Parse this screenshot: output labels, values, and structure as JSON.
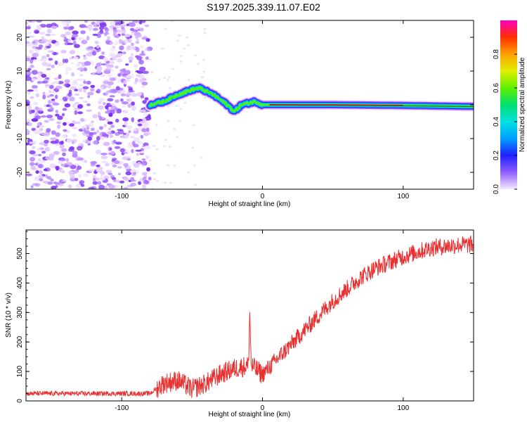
{
  "title": "S197.2025.339.11.07.E02",
  "chart_data": [
    {
      "type": "heatmap",
      "title": "S197.2025.339.11.07.E02",
      "xlabel": "Height of straight line (km)",
      "ylabel": "Frequency (Hz)",
      "xlim": [
        -168,
        150
      ],
      "ylim": [
        -25,
        25
      ],
      "xticks": [
        -100,
        0,
        100
      ],
      "yticks": [
        -20,
        -10,
        0,
        10,
        20
      ],
      "colorbar": {
        "label": "Normalized spectral amplitude",
        "range": [
          0,
          1
        ],
        "ticks": [
          "0.0",
          "0.2",
          "0.4",
          "0.6",
          "0.8"
        ]
      },
      "ridge": {
        "description": "dominant frequency ridge",
        "x": [
          -80,
          -70,
          -60,
          -50,
          -45,
          -40,
          -35,
          -30,
          -25,
          -20,
          -15,
          -10,
          -5,
          0,
          10,
          50,
          100,
          150
        ],
        "y": [
          0,
          1,
          3,
          4.5,
          5,
          4,
          3,
          1.5,
          0,
          -2,
          0,
          0.5,
          1,
          0,
          0,
          0,
          -0.2,
          -0.5
        ]
      },
      "noise_region_x": [
        -168,
        -80
      ]
    },
    {
      "type": "line",
      "xlabel": "Height of straight line (km)",
      "ylabel": "SNR (10 * v/v)",
      "xlim": [
        -168,
        150
      ],
      "ylim": [
        0,
        580
      ],
      "xticks": [
        -100,
        0,
        100
      ],
      "yticks": [
        0,
        100,
        200,
        300,
        400,
        500
      ],
      "series": [
        {
          "name": "SNR",
          "color": "#e83030",
          "x": [
            -168,
            -140,
            -110,
            -80,
            -70,
            -60,
            -50,
            -40,
            -30,
            -20,
            -10,
            -9,
            -8,
            0,
            10,
            20,
            30,
            40,
            50,
            60,
            70,
            80,
            90,
            100,
            110,
            120,
            130,
            140,
            150
          ],
          "y": [
            25,
            25,
            25,
            25,
            60,
            70,
            40,
            60,
            90,
            110,
            120,
            300,
            120,
            90,
            140,
            190,
            240,
            290,
            340,
            380,
            420,
            450,
            470,
            490,
            505,
            520,
            525,
            530,
            530
          ]
        }
      ]
    }
  ]
}
